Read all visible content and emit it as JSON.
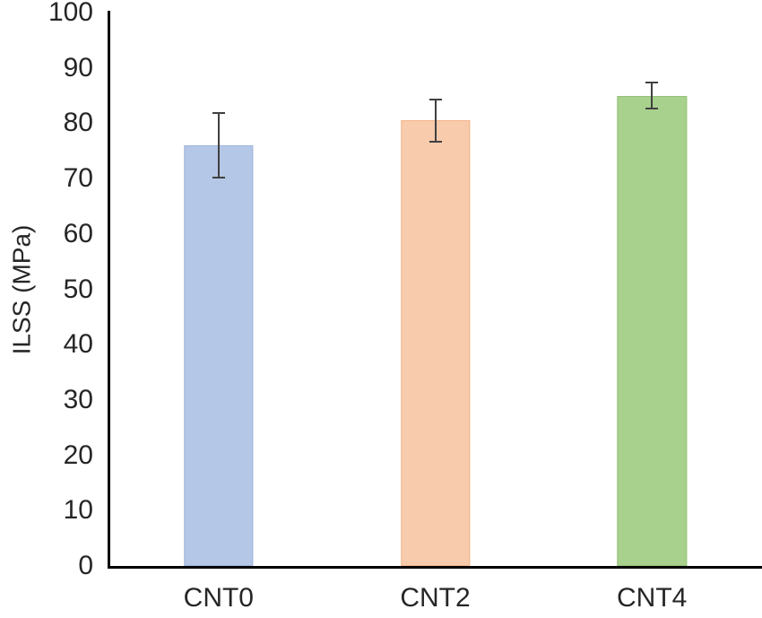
{
  "chart_data": {
    "type": "bar",
    "title": "",
    "categories": [
      "CNT0",
      "CNT2",
      "CNT4"
    ],
    "values": [
      76,
      80.5,
      85
    ],
    "error_bars": {
      "plus": [
        6,
        4,
        2.5
      ],
      "minus": [
        6,
        4,
        2.5
      ]
    },
    "bar_colors": [
      "#b4c7e7",
      "#f8cbad",
      "#a9d18e"
    ],
    "bar_border_colors": [
      "#9db4da",
      "#f3b489",
      "#93c274"
    ],
    "xlabel": "",
    "ylabel": "ILSS (MPa)",
    "ylim": [
      0,
      100
    ],
    "ytick_step": 10,
    "ytick_labels": [
      "0",
      "10",
      "20",
      "30",
      "40",
      "50",
      "60",
      "70",
      "80",
      "90",
      "100"
    ],
    "grid": false,
    "legend": false,
    "background_color": "#ffffff",
    "axis_color": "#000000",
    "error_bar_color": "#404040",
    "text_color": "#262626"
  }
}
